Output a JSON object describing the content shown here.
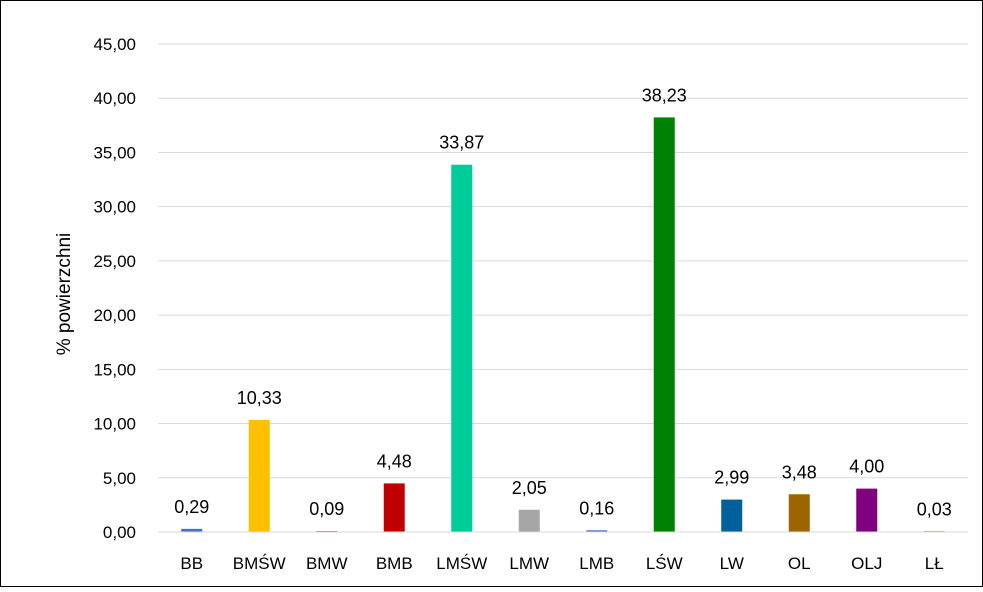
{
  "chart_data": {
    "type": "bar",
    "ylabel": "% powierzchni",
    "xlabel": "",
    "ylim": [
      0,
      45
    ],
    "ytick_step": 5,
    "yticks": [
      "0,00",
      "5,00",
      "10,00",
      "15,00",
      "20,00",
      "25,00",
      "30,00",
      "35,00",
      "40,00",
      "45,00"
    ],
    "grid": true,
    "legend": "none",
    "categories": [
      "BB",
      "BMŚW",
      "BMW",
      "BMB",
      "LMŚW",
      "LMW",
      "LMB",
      "LŚW",
      "LW",
      "OL",
      "OLJ",
      "LŁ"
    ],
    "values": [
      0.29,
      10.33,
      0.09,
      4.48,
      33.87,
      2.05,
      0.16,
      38.23,
      2.99,
      3.48,
      4.0,
      0.03
    ],
    "value_labels": [
      "0,29",
      "10,33",
      "0,09",
      "4,48",
      "33,87",
      "2,05",
      "0,16",
      "38,23",
      "2,99",
      "3,48",
      "4,00",
      "0,03"
    ],
    "colors": [
      "#4472C4",
      "#FFC000",
      "#4472C4",
      "#C00000",
      "#00CC99",
      "#A6A6A6",
      "#4472C4",
      "#008000",
      "#00609C",
      "#9C6500",
      "#800080",
      "#4472C4"
    ],
    "gridline_color": "#D9D9D9"
  }
}
